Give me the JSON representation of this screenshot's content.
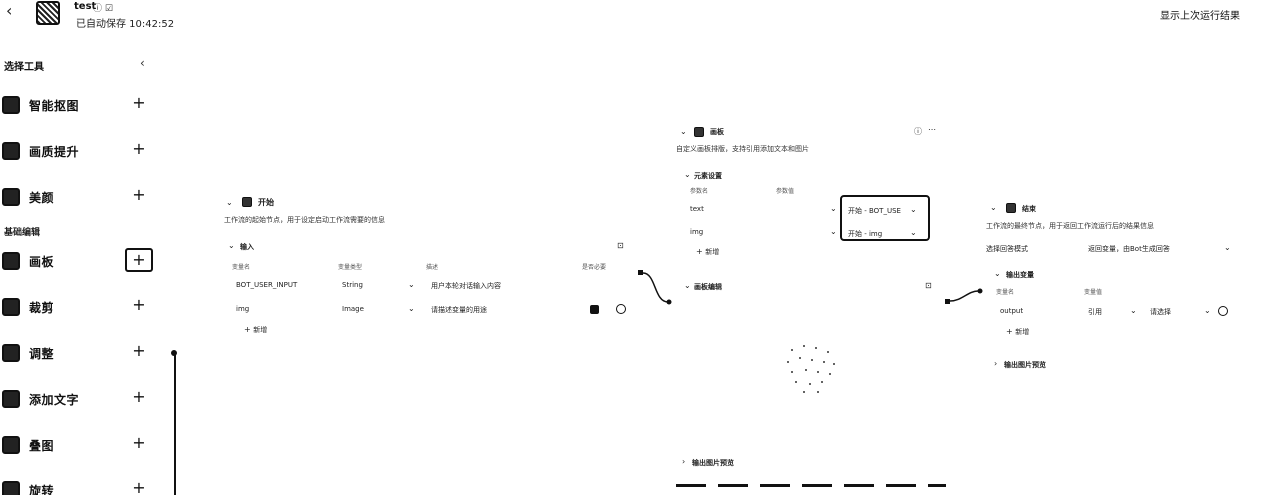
{
  "header": {
    "title": "test",
    "title_icons": "ⓘ ☑",
    "saved": "已自动保存 10:42:52",
    "show_last_run": "显示上次运行结果"
  },
  "sidebar": {
    "title": "选择工具",
    "collapse": "‹",
    "section_basic": "基础编辑",
    "items": [
      {
        "label": "智能抠图"
      },
      {
        "label": "画质提升"
      },
      {
        "label": "美颜"
      },
      {
        "label": "画板"
      },
      {
        "label": "裁剪"
      },
      {
        "label": "调整"
      },
      {
        "label": "添加文字"
      },
      {
        "label": "叠图"
      },
      {
        "label": "旋转"
      }
    ]
  },
  "start_node": {
    "title": "开始",
    "desc": "工作流的起始节点，用于设定启动工作流需要的信息",
    "input_section": "输入",
    "col_var": "变量名",
    "col_type": "变量类型",
    "col_desc": "描述",
    "col_required": "是否必要",
    "rows": [
      {
        "name": "BOT_USER_INPUT",
        "type": "String",
        "desc": "用户本轮对话输入内容"
      },
      {
        "name": "img",
        "type": "Image",
        "desc": "请描述变量的用途"
      }
    ],
    "add": "新增"
  },
  "canvas_node": {
    "title": "画板",
    "desc": "自定义画板排版，支持引用添加文本和图片",
    "elements_section": "元素设置",
    "col_name": "参数名",
    "col_value": "参数值",
    "rows": [
      {
        "name": "text",
        "ref": "开始 - BOT_USE"
      },
      {
        "name": "img",
        "ref": "开始 - img"
      }
    ],
    "add": "新增",
    "edit_section": "画板编辑",
    "preview": "输出图片预览"
  },
  "end_node": {
    "title": "结束",
    "desc": "工作流的最终节点，用于返回工作流运行后的结果信息",
    "mode_label": "选择回答模式",
    "mode_value": "返回变量，由Bot生成回答",
    "output_section": "输出变量",
    "col_name": "变量名",
    "col_value": "变量值",
    "rows": [
      {
        "name": "output",
        "kind": "引用",
        "value": "请选择"
      }
    ],
    "add": "新增",
    "preview": "输出图片预览"
  }
}
